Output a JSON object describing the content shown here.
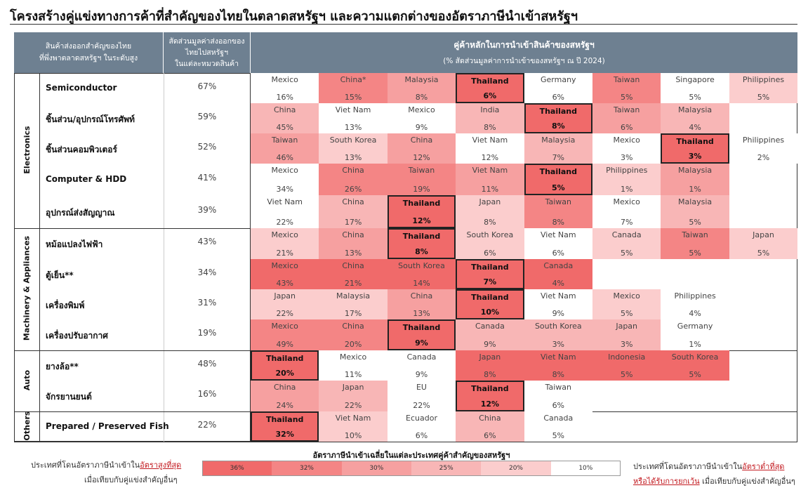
{
  "title": "โครงสร้างคู่แข่งทางการค้าที่สำคัญของไทยในตลาดสหรัฐฯ และความแตกต่างของอัตราภาษีนำเข้าสหรัฐฯ",
  "headers": {
    "products": "สินค้าส่งออกสำคัญของไทย\nที่พึ่งพาตลาดสหรัฐฯ ในระดับสูง",
    "share": "สัดส่วนมูลค่าส่งออกของ\nไทยไปสหรัฐฯ\nในแต่ละหมวดสินค้า",
    "partners": "คู่ค้าหลักในการนำเข้าสินค้าของสหรัฐฯ",
    "partners_sub": "(% สัดส่วนมูลค่าการนำเข้าของสหรัฐฯ ณ ปี 2024)"
  },
  "colors": {
    "header_bg": "#6e8091",
    "tariff_36": "#f06a6a",
    "tariff_32": "#f48585",
    "tariff_30": "#f6a0a0",
    "tariff_25": "#f8b6b6",
    "tariff_20": "#fbcdcd",
    "tariff_10": "#ffffff"
  },
  "categories": [
    {
      "name": "Electronics",
      "rows": [
        0,
        1,
        2,
        3,
        4
      ]
    },
    {
      "name": "Machinery & Appliances",
      "rows": [
        5,
        6,
        7,
        8
      ]
    },
    {
      "name": "Auto",
      "rows": [
        9,
        10
      ]
    },
    {
      "name": "Others",
      "rows": [
        11
      ]
    }
  ],
  "chart_data": {
    "type": "table",
    "rows": [
      {
        "product": "Semiconductor",
        "thai_share": "67%",
        "partners": [
          {
            "country": "Mexico",
            "share": "16%",
            "tariff": "10%"
          },
          {
            "country": "China*",
            "share": "15%",
            "tariff": "32%"
          },
          {
            "country": "Malaysia",
            "share": "8%",
            "tariff": "30%"
          },
          {
            "country": "Thailand",
            "share": "6%",
            "tariff": "36%",
            "highlight": true
          },
          {
            "country": "Germany",
            "share": "6%",
            "tariff": "10%"
          },
          {
            "country": "Taiwan",
            "share": "5%",
            "tariff": "32%"
          },
          {
            "country": "Singapore",
            "share": "5%",
            "tariff": "10%"
          },
          {
            "country": "Philippines",
            "share": "5%",
            "tariff": "20%"
          }
        ]
      },
      {
        "product": "ชิ้นส่วน/อุปกรณ์โทรศัพท์",
        "thai_share": "59%",
        "partners": [
          {
            "country": "China",
            "share": "45%",
            "tariff": "25%"
          },
          {
            "country": "Viet Nam",
            "share": "13%",
            "tariff": "10%"
          },
          {
            "country": "Mexico",
            "share": "9%",
            "tariff": "10%"
          },
          {
            "country": "India",
            "share": "8%",
            "tariff": "25%"
          },
          {
            "country": "Thailand",
            "share": "8%",
            "tariff": "36%",
            "highlight": true
          },
          {
            "country": "Taiwan",
            "share": "6%",
            "tariff": "30%"
          },
          {
            "country": "Malaysia",
            "share": "4%",
            "tariff": "25%"
          }
        ]
      },
      {
        "product": "ชิ้นส่วนคอมพิวเตอร์",
        "thai_share": "52%",
        "partners": [
          {
            "country": "Taiwan",
            "share": "46%",
            "tariff": "30%"
          },
          {
            "country": "South Korea",
            "share": "13%",
            "tariff": "20%"
          },
          {
            "country": "China",
            "share": "12%",
            "tariff": "30%"
          },
          {
            "country": "Viet Nam",
            "share": "12%",
            "tariff": "10%"
          },
          {
            "country": "Malaysia",
            "share": "7%",
            "tariff": "25%"
          },
          {
            "country": "Mexico",
            "share": "3%",
            "tariff": "10%"
          },
          {
            "country": "Thailand",
            "share": "3%",
            "tariff": "36%",
            "highlight": true
          },
          {
            "country": "Philippines",
            "share": "2%",
            "tariff": "10%"
          }
        ]
      },
      {
        "product": "Computer & HDD",
        "thai_share": "41%",
        "partners": [
          {
            "country": "Mexico",
            "share": "34%",
            "tariff": "10%"
          },
          {
            "country": "China",
            "share": "26%",
            "tariff": "32%"
          },
          {
            "country": "Taiwan",
            "share": "19%",
            "tariff": "32%"
          },
          {
            "country": "Viet Nam",
            "share": "11%",
            "tariff": "30%"
          },
          {
            "country": "Thailand",
            "share": "5%",
            "tariff": "36%",
            "highlight": true
          },
          {
            "country": "Philippines",
            "share": "1%",
            "tariff": "20%"
          },
          {
            "country": "Malaysia",
            "share": "1%",
            "tariff": "30%"
          }
        ]
      },
      {
        "product": "อุปกรณ์ส่งสัญญาณ",
        "thai_share": "39%",
        "partners": [
          {
            "country": "Viet Nam",
            "share": "22%",
            "tariff": "10%"
          },
          {
            "country": "China",
            "share": "17%",
            "tariff": "25%"
          },
          {
            "country": "Thailand",
            "share": "12%",
            "tariff": "36%",
            "highlight": true
          },
          {
            "country": "Japan",
            "share": "8%",
            "tariff": "20%"
          },
          {
            "country": "Taiwan",
            "share": "8%",
            "tariff": "32%"
          },
          {
            "country": "Mexico",
            "share": "7%",
            "tariff": "10%"
          },
          {
            "country": "Malaysia",
            "share": "5%",
            "tariff": "25%"
          }
        ]
      },
      {
        "product": "หม้อแปลงไฟฟ้า",
        "thai_share": "43%",
        "partners": [
          {
            "country": "Mexico",
            "share": "21%",
            "tariff": "20%"
          },
          {
            "country": "China",
            "share": "13%",
            "tariff": "30%"
          },
          {
            "country": "Thailand",
            "share": "8%",
            "tariff": "36%",
            "highlight": true
          },
          {
            "country": "South Korea",
            "share": "6%",
            "tariff": "20%"
          },
          {
            "country": "Viet Nam",
            "share": "6%",
            "tariff": "10%"
          },
          {
            "country": "Canada",
            "share": "5%",
            "tariff": "20%"
          },
          {
            "country": "Taiwan",
            "share": "5%",
            "tariff": "32%"
          },
          {
            "country": "Japan",
            "share": "5%",
            "tariff": "20%"
          }
        ]
      },
      {
        "product": "ตู้เย็น**",
        "thai_share": "34%",
        "partners": [
          {
            "country": "Mexico",
            "share": "43%",
            "tariff": "36%"
          },
          {
            "country": "China",
            "share": "21%",
            "tariff": "36%"
          },
          {
            "country": "South Korea",
            "share": "14%",
            "tariff": "36%"
          },
          {
            "country": "Thailand",
            "share": "7%",
            "tariff": "36%",
            "highlight": true
          },
          {
            "country": "Canada",
            "share": "4%",
            "tariff": "36%"
          }
        ]
      },
      {
        "product": "เครื่องพิมพ์",
        "thai_share": "31%",
        "partners": [
          {
            "country": "Japan",
            "share": "22%",
            "tariff": "20%"
          },
          {
            "country": "Malaysia",
            "share": "17%",
            "tariff": "20%"
          },
          {
            "country": "China",
            "share": "13%",
            "tariff": "30%"
          },
          {
            "country": "Thailand",
            "share": "10%",
            "tariff": "36%",
            "highlight": true
          },
          {
            "country": "Viet Nam",
            "share": "9%",
            "tariff": "10%"
          },
          {
            "country": "Mexico",
            "share": "5%",
            "tariff": "20%"
          },
          {
            "country": "Philippines",
            "share": "4%",
            "tariff": "10%"
          }
        ]
      },
      {
        "product": "เครื่องปรับอากาศ",
        "thai_share": "19%",
        "partners": [
          {
            "country": "Mexico",
            "share": "49%",
            "tariff": "32%"
          },
          {
            "country": "China",
            "share": "20%",
            "tariff": "32%"
          },
          {
            "country": "Thailand",
            "share": "9%",
            "tariff": "36%",
            "highlight": true
          },
          {
            "country": "Canada",
            "share": "9%",
            "tariff": "25%"
          },
          {
            "country": "South Korea",
            "share": "3%",
            "tariff": "25%"
          },
          {
            "country": "Japan",
            "share": "3%",
            "tariff": "25%"
          },
          {
            "country": "Germany",
            "share": "1%",
            "tariff": "10%"
          }
        ]
      },
      {
        "product": "ยางล้อ**",
        "thai_share": "48%",
        "partners": [
          {
            "country": "Thailand",
            "share": "20%",
            "tariff": "36%",
            "highlight": true
          },
          {
            "country": "Mexico",
            "share": "11%",
            "tariff": "10%"
          },
          {
            "country": "Canada",
            "share": "9%",
            "tariff": "10%"
          },
          {
            "country": "Japan",
            "share": "8%",
            "tariff": "36%"
          },
          {
            "country": "Viet Nam",
            "share": "8%",
            "tariff": "36%"
          },
          {
            "country": "Indonesia",
            "share": "5%",
            "tariff": "36%"
          },
          {
            "country": "South Korea",
            "share": "5%",
            "tariff": "36%"
          }
        ]
      },
      {
        "product": "จักรยานยนต์",
        "thai_share": "16%",
        "partners": [
          {
            "country": "China",
            "share": "24%",
            "tariff": "30%"
          },
          {
            "country": "Japan",
            "share": "22%",
            "tariff": "25%"
          },
          {
            "country": "EU",
            "share": "22%",
            "tariff": "10%"
          },
          {
            "country": "Thailand",
            "share": "12%",
            "tariff": "36%",
            "highlight": true
          },
          {
            "country": "Taiwan",
            "share": "6%",
            "tariff": "10%"
          }
        ]
      },
      {
        "product": "Prepared / Preserved Fish",
        "thai_share": "22%",
        "partners": [
          {
            "country": "Thailand",
            "share": "32%",
            "tariff": "36%",
            "highlight": true
          },
          {
            "country": "Viet Nam",
            "share": "10%",
            "tariff": "20%"
          },
          {
            "country": "Ecuador",
            "share": "6%",
            "tariff": "10%"
          },
          {
            "country": "China",
            "share": "6%",
            "tariff": "25%"
          },
          {
            "country": "Canada",
            "share": "5%",
            "tariff": "10%"
          }
        ]
      }
    ]
  },
  "legend": {
    "title": "อัตราภาษีนำเข้าเฉลี่ยในแต่ละประเทศคู่ค้าสำคัญของสหรัฐฯ",
    "items": [
      {
        "label": "36%",
        "color": "#f06a6a"
      },
      {
        "label": "32%",
        "color": "#f48585"
      },
      {
        "label": "30%",
        "color": "#f6a0a0"
      },
      {
        "label": "25%",
        "color": "#f8b6b6"
      },
      {
        "label": "20%",
        "color": "#fbcdcd"
      },
      {
        "label": "10%",
        "color": "#ffffff"
      }
    ]
  },
  "notes": {
    "left_1a": "ประเทศที่โดนอัตราภาษีนำเข้าใน",
    "left_1b": "อัตราสูงที่สุด",
    "left_2": "เมื่อเทียบกับคู่แข่งสำคัญอื่นๆ",
    "right_1a": "ประเทศที่โดนอัตราภาษีนำเข้าใน",
    "right_1b": "อัตราต่ำที่สุด",
    "right_2a": "หรือได้รับการยกเว้น",
    "right_2b": " เมื่อเทียบกับคู่แข่งสำคัญอื่นๆ"
  }
}
